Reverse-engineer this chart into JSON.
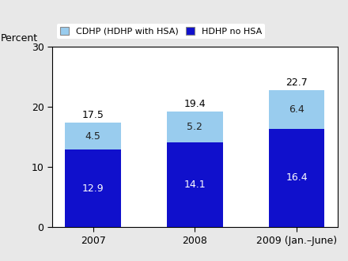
{
  "categories": [
    "2007",
    "2008",
    "2009 (Jan.–June)"
  ],
  "hdhp_no_hsa": [
    12.9,
    14.1,
    16.4
  ],
  "cdhp_hsa": [
    4.5,
    5.2,
    6.4
  ],
  "totals": [
    17.5,
    19.4,
    22.7
  ],
  "color_hdhp": "#1010cc",
  "color_cdhp": "#99ccee",
  "ylabel": "Percent",
  "ylim": [
    0,
    30
  ],
  "yticks": [
    0,
    10,
    20,
    30
  ],
  "legend_cdhp": "CDHP (HDHP with HSA)",
  "legend_hdhp": "HDHP no HSA",
  "bar_width": 0.55,
  "label_fontsize": 9,
  "tick_fontsize": 9
}
